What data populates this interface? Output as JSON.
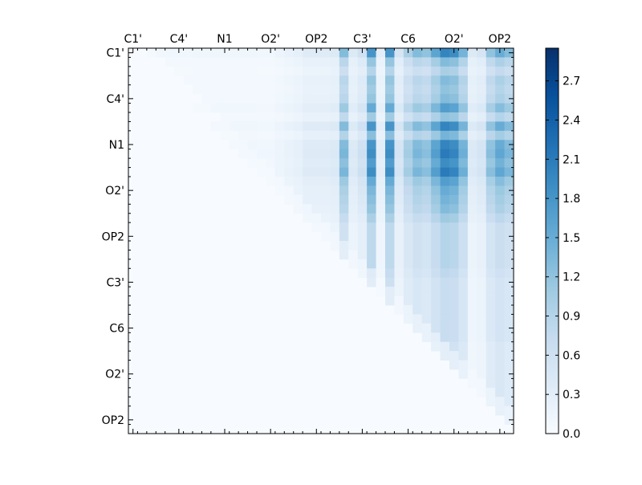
{
  "chart_data": {
    "type": "heatmap",
    "n": 42,
    "x_tick_labels": [
      "C1'",
      "C4'",
      "N1",
      "O2'",
      "OP2",
      "C3'",
      "C6",
      "O2'",
      "OP2"
    ],
    "y_tick_labels": [
      "C1'",
      "C4'",
      "N1",
      "O2'",
      "OP2",
      "C3'",
      "C6",
      "O2'",
      "OP2"
    ],
    "tick_index_step": 5,
    "colormap": "Blues",
    "color_low": "#f7fbff",
    "color_high": "#08306b",
    "colorbar_range": [
      0.0,
      2.95
    ],
    "colorbar_ticks": [
      "0.0",
      "0.3",
      "0.6",
      "0.9",
      "1.2",
      "1.5",
      "1.8",
      "2.1",
      "2.4",
      "2.7"
    ],
    "colorbar_tick_values": [
      0.0,
      0.3,
      0.6,
      0.9,
      1.2,
      1.5,
      1.8,
      2.1,
      2.4,
      2.7
    ],
    "triangle": "upper",
    "column_profile": [
      0.05,
      0.05,
      0.1,
      0.1,
      0.1,
      0.1,
      0.1,
      0.12,
      0.12,
      0.12,
      0.12,
      0.12,
      0.12,
      0.12,
      0.1,
      0.1,
      0.15,
      0.2,
      0.25,
      0.35,
      0.35,
      0.35,
      0.4,
      1.3,
      0.4,
      0.6,
      1.8,
      0.3,
      1.8,
      0.5,
      1.0,
      1.3,
      1.2,
      1.6,
      2.0,
      1.9,
      1.4,
      0.4,
      0.5,
      1.2,
      1.5,
      1.3
    ],
    "row_profile": [
      1.0,
      0.65,
      0.5,
      0.65,
      0.6,
      0.65,
      0.85,
      0.6,
      1.0,
      0.7,
      1.0,
      1.05,
      0.95,
      1.05,
      0.85,
      0.75,
      0.7,
      0.65,
      0.55,
      0.45,
      0.45,
      0.45,
      0.45,
      0.45,
      0.4,
      0.35,
      0.35,
      0.35,
      0.35,
      0.35,
      0.35,
      0.35,
      0.3,
      0.3,
      0.3,
      0.3,
      0.3,
      0.3,
      0.3,
      0.3,
      0.3,
      0.3
    ]
  }
}
